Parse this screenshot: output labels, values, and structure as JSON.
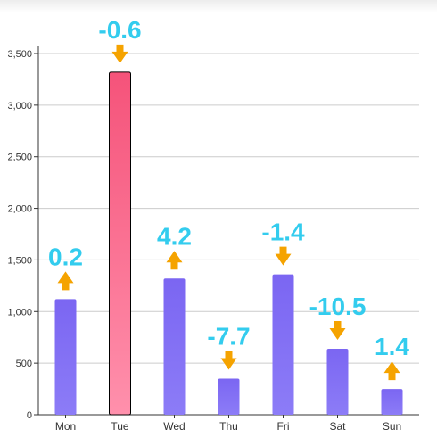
{
  "chart_data": {
    "type": "bar",
    "categories": [
      "Mon",
      "Tue",
      "Wed",
      "Thu",
      "Fri",
      "Sat",
      "Sun"
    ],
    "values": [
      1120,
      3320,
      1320,
      350,
      1360,
      640,
      250
    ],
    "changes": [
      "0.2",
      "-0.6",
      "4.2",
      "-7.7",
      "-1.4",
      "-10.5",
      "1.4"
    ],
    "directions": [
      "up",
      "down",
      "up",
      "down",
      "down",
      "down",
      "up"
    ],
    "highlight_index": 1,
    "ylim": [
      0,
      3500
    ],
    "yticks": [
      0,
      500,
      1000,
      1500,
      2000,
      2500,
      3000,
      3500
    ],
    "ytick_labels": [
      "0",
      "500",
      "1,000",
      "1,500",
      "2,000",
      "2,500",
      "3,000",
      "3,500"
    ],
    "grid": true,
    "colors": {
      "bar_top": "#7b66f2",
      "bar_bottom": "#8c7cf7",
      "highlight_top": "#f5537a",
      "highlight_bottom": "#ff90ac",
      "arrow": "#f5a300",
      "change_label": "#33ccee",
      "grid": "#cccccc"
    }
  }
}
